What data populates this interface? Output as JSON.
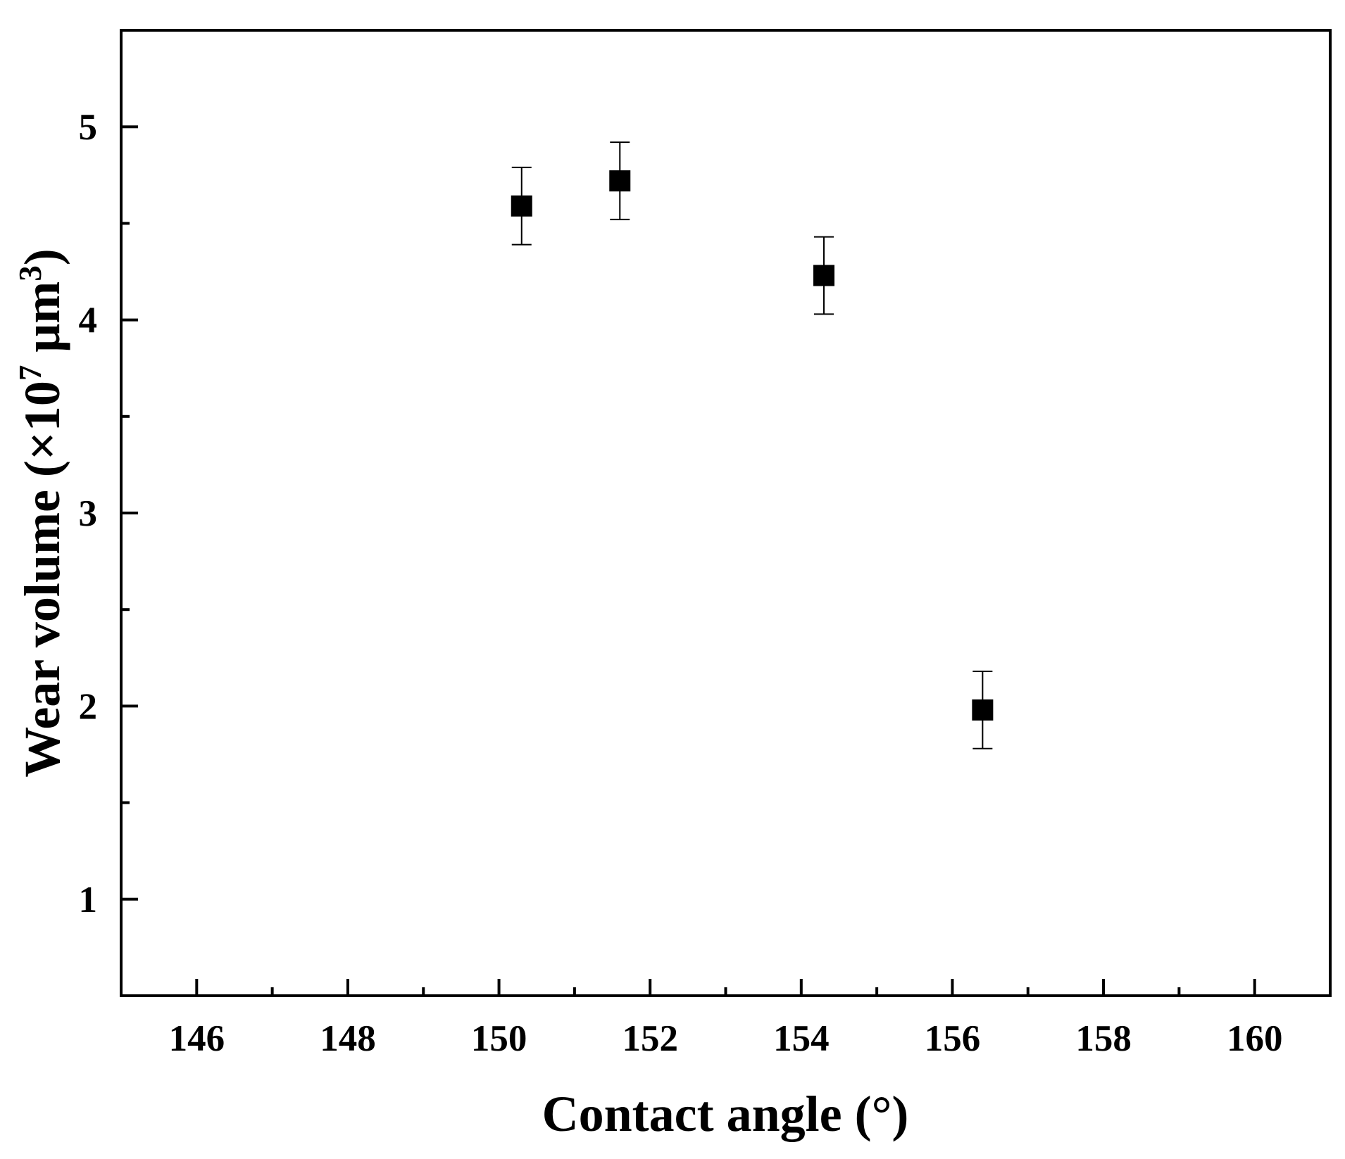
{
  "chart_data": {
    "type": "scatter",
    "xlabel": "Contact angle (°)",
    "ylabel": {
      "pre": "Wear volume (×10",
      "exp1": "7",
      "mid": " μm",
      "exp2": "3",
      "post": ")"
    },
    "xlim": [
      145,
      161
    ],
    "ylim": [
      0.5,
      5.5
    ],
    "x_ticks": [
      146,
      148,
      150,
      152,
      154,
      156,
      158,
      160
    ],
    "x_minor_ticks": [
      147,
      149,
      151,
      153,
      155,
      157,
      159
    ],
    "y_ticks": [
      1,
      2,
      3,
      4,
      5
    ],
    "y_minor_ticks": [
      1.5,
      2.5,
      3.5,
      4.5
    ],
    "grid": false,
    "marker": "filled-square",
    "color": "#000000",
    "points": [
      {
        "x": 150.3,
        "y": 4.59,
        "err": 0.2
      },
      {
        "x": 151.6,
        "y": 4.72,
        "err": 0.2
      },
      {
        "x": 154.3,
        "y": 4.23,
        "err": 0.2
      },
      {
        "x": 156.4,
        "y": 1.98,
        "err": 0.2
      }
    ]
  }
}
